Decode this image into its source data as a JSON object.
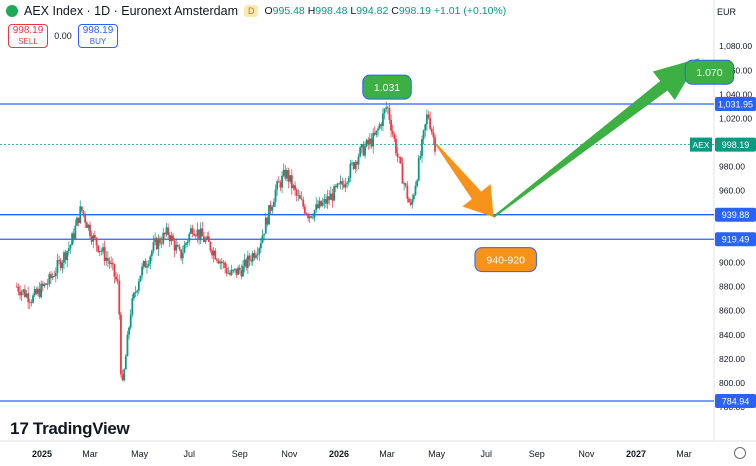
{
  "header": {
    "title": "AEX Index · 1D · Euronext Amsterdam",
    "badge": "D",
    "open_label": "O",
    "open": "995.48",
    "high_label": "H",
    "high": "998.48",
    "low_label": "L",
    "low": "994.82",
    "close_label": "C",
    "close": "998.19",
    "change": "+1.01 (+0.10%)"
  },
  "trade": {
    "sell_price": "998.19",
    "sell_label": "SELL",
    "spread": "0.00",
    "buy_price": "998.19",
    "buy_label": "BUY"
  },
  "currency": "EUR",
  "logo_text": "TradingView",
  "colors": {
    "up": "#089981",
    "down": "#f23645",
    "line": "#2962ff",
    "orange": "#f7931a",
    "green": "#3cb043"
  },
  "chart_data": {
    "type": "candlestick",
    "symbol": "AEX",
    "last_price": 998.19,
    "ylim": [
      760,
      1100
    ],
    "y_ticks": [
      780,
      800,
      820,
      840,
      860,
      880,
      900,
      920,
      940,
      960,
      980,
      1000,
      1020,
      1040,
      1060,
      1080
    ],
    "x_labels": [
      "2025",
      "Mar",
      "May",
      "Jul",
      "Sep",
      "Nov",
      "2026",
      "Mar",
      "May",
      "Jul",
      "Sep",
      "Nov",
      "2027",
      "Mar"
    ],
    "x_label_dates": [
      "2025-01-01",
      "2025-03-01",
      "2025-05-01",
      "2025-07-01",
      "2025-09-01",
      "2025-11-01",
      "2026-01-01",
      "2026-03-01",
      "2026-05-01",
      "2026-07-01",
      "2026-09-01",
      "2026-11-01",
      "2027-01-01",
      "2027-03-01"
    ],
    "price_path": [
      [
        "2024-12-01",
        880
      ],
      [
        "2024-12-20",
        870
      ],
      [
        "2025-01-10",
        885
      ],
      [
        "2025-02-05",
        915
      ],
      [
        "2025-02-18",
        945
      ],
      [
        "2025-03-05",
        920
      ],
      [
        "2025-03-25",
        900
      ],
      [
        "2025-04-05",
        880
      ],
      [
        "2025-04-09",
        790
      ],
      [
        "2025-04-20",
        860
      ],
      [
        "2025-05-01",
        890
      ],
      [
        "2025-05-20",
        915
      ],
      [
        "2025-06-05",
        925
      ],
      [
        "2025-06-20",
        905
      ],
      [
        "2025-07-05",
        930
      ],
      [
        "2025-07-25",
        915
      ],
      [
        "2025-08-05",
        905
      ],
      [
        "2025-08-20",
        890
      ],
      [
        "2025-09-05",
        895
      ],
      [
        "2025-09-25",
        915
      ],
      [
        "2025-10-15",
        960
      ],
      [
        "2025-10-28",
        975
      ],
      [
        "2025-11-10",
        955
      ],
      [
        "2025-11-25",
        940
      ],
      [
        "2025-12-15",
        950
      ],
      [
        "2026-01-05",
        965
      ],
      [
        "2026-01-25",
        990
      ],
      [
        "2026-02-15",
        1005
      ],
      [
        "2026-03-01",
        1031
      ],
      [
        "2026-03-15",
        985
      ],
      [
        "2026-03-30",
        945
      ],
      [
        "2026-04-10",
        985
      ],
      [
        "2026-04-20",
        1025
      ],
      [
        "2026-04-29",
        998.19
      ]
    ],
    "levels": [
      {
        "value": 1031.95,
        "label": "1,031.95"
      },
      {
        "value": 939.88,
        "label": "939.88"
      },
      {
        "value": 919.49,
        "label": "919.49"
      },
      {
        "value": 784.94,
        "label": "784.94"
      }
    ],
    "annotations": [
      {
        "text": "1.031",
        "date": "2026-03-01",
        "value": 1031,
        "color": "#3cb043"
      },
      {
        "text": "940-920",
        "date": "2026-07-15",
        "value": 930,
        "color": "#f7931a"
      },
      {
        "text": "1.070",
        "date": "2027-03-20",
        "value": 1070,
        "color": "#3cb043"
      }
    ],
    "arrows": [
      {
        "color": "#f7931a",
        "from": [
          "2026-05-01",
          998
        ],
        "to": [
          "2026-07-10",
          938
        ]
      },
      {
        "color": "#3cb043",
        "from": [
          "2026-07-10",
          938
        ],
        "to": [
          "2027-03-20",
          1070
        ]
      }
    ]
  }
}
